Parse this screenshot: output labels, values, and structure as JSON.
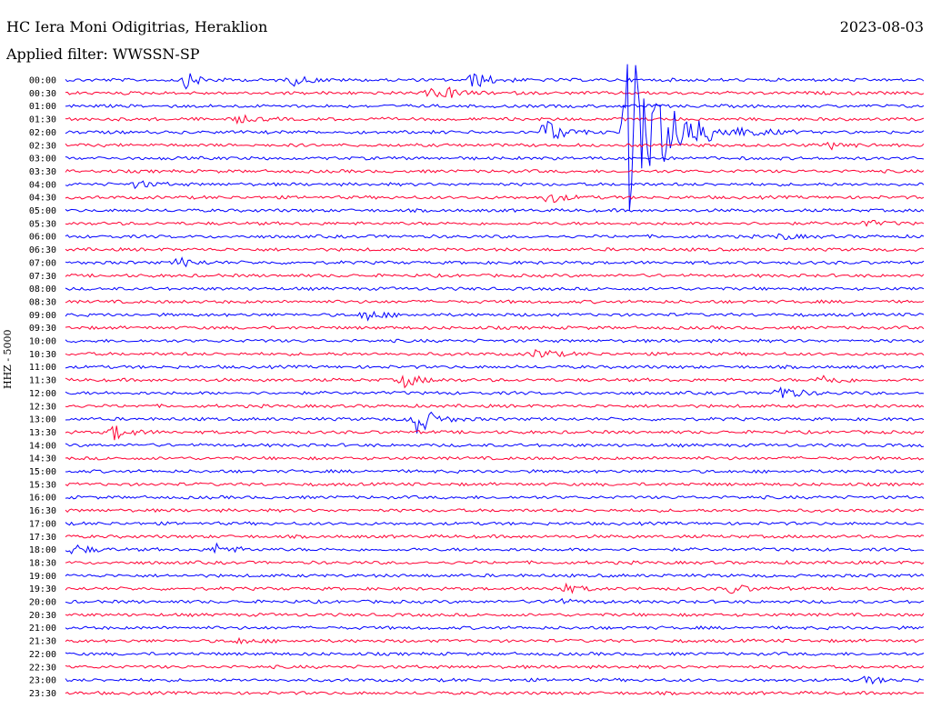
{
  "header": {
    "station": "HC Iera Moni Odigitrias, Heraklion",
    "filter": "Applied filter: WWSSN-SP",
    "date": "2023-08-03",
    "channel": "HHZ - 5000"
  },
  "chart_data": {
    "type": "line",
    "title": "HC Iera Moni Odigitrias, Heraklion",
    "ylabel": "HHZ - 5000",
    "trace_labels": [
      "00:00",
      "00:30",
      "01:00",
      "01:30",
      "02:00",
      "02:30",
      "03:00",
      "03:30",
      "04:00",
      "04:30",
      "05:00",
      "05:30",
      "06:00",
      "06:30",
      "07:00",
      "07:30",
      "08:00",
      "08:30",
      "09:00",
      "09:30",
      "10:00",
      "10:30",
      "11:00",
      "11:30",
      "12:00",
      "12:30",
      "13:00",
      "13:30",
      "14:00",
      "14:30",
      "15:00",
      "15:30",
      "16:00",
      "16:30",
      "17:00",
      "17:30",
      "18:00",
      "18:30",
      "19:00",
      "19:30",
      "20:00",
      "20:30",
      "21:00",
      "21:30",
      "22:00",
      "22:30",
      "23:00",
      "23:30"
    ],
    "trace_colors": [
      "#0000ff",
      "#ff0033"
    ],
    "trace_minutes": 30,
    "events": [
      {
        "trace": 0,
        "minute": 4.2,
        "amp": 8
      },
      {
        "trace": 0,
        "minute": 8.0,
        "amp": 5
      },
      {
        "trace": 0,
        "minute": 14.3,
        "amp": 9
      },
      {
        "trace": 1,
        "minute": 12.8,
        "amp": 4
      },
      {
        "trace": 1,
        "minute": 13.3,
        "amp": 5
      },
      {
        "trace": 3,
        "minute": 6.0,
        "amp": 4
      },
      {
        "trace": 4,
        "minute": 16.8,
        "amp": 15
      },
      {
        "trace": 4,
        "minute": 19.7,
        "amp": 95
      },
      {
        "trace": 5,
        "minute": 26.8,
        "amp": 4
      },
      {
        "trace": 8,
        "minute": 2.5,
        "amp": 4
      },
      {
        "trace": 9,
        "minute": 16.9,
        "amp": 6
      },
      {
        "trace": 11,
        "minute": 28.0,
        "amp": 3
      },
      {
        "trace": 12,
        "minute": 25.0,
        "amp": 3
      },
      {
        "trace": 14,
        "minute": 4.0,
        "amp": 5
      },
      {
        "trace": 18,
        "minute": 10.5,
        "amp": 6
      },
      {
        "trace": 21,
        "minute": 16.5,
        "amp": 6
      },
      {
        "trace": 23,
        "minute": 11.8,
        "amp": 8
      },
      {
        "trace": 23,
        "minute": 26.5,
        "amp": 6
      },
      {
        "trace": 24,
        "minute": 25.0,
        "amp": 8
      },
      {
        "trace": 26,
        "minute": 12.2,
        "amp": 20
      },
      {
        "trace": 27,
        "minute": 1.7,
        "amp": 8
      },
      {
        "trace": 36,
        "minute": 0.3,
        "amp": 6
      },
      {
        "trace": 36,
        "minute": 5.3,
        "amp": 6
      },
      {
        "trace": 39,
        "minute": 17.3,
        "amp": 6
      },
      {
        "trace": 39,
        "minute": 23.3,
        "amp": 5
      },
      {
        "trace": 40,
        "minute": 17.0,
        "amp": 4
      },
      {
        "trace": 43,
        "minute": 6.0,
        "amp": 3
      },
      {
        "trace": 46,
        "minute": 28.0,
        "amp": 4
      }
    ]
  }
}
